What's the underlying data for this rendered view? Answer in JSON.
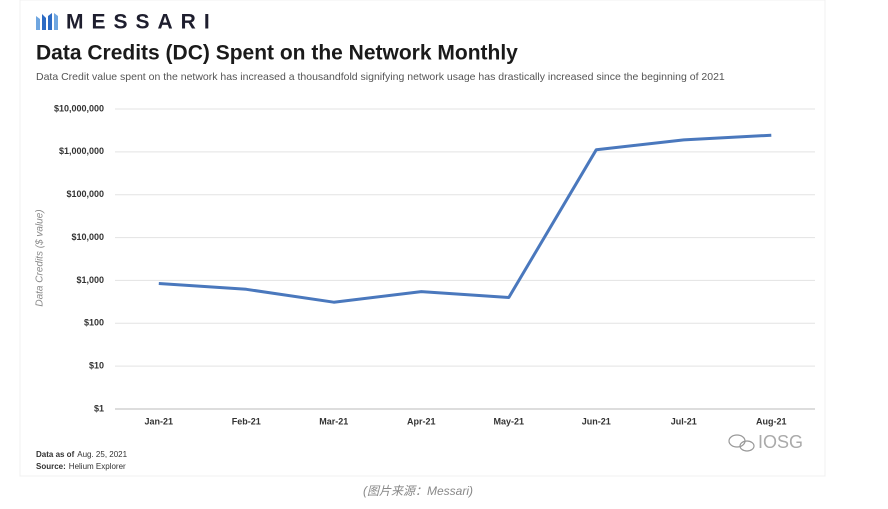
{
  "chart_data": {
    "type": "line",
    "brand": "MESSARI",
    "title": "Data Credits (DC) Spent on the Network Monthly",
    "subtitle": "Data Credit value spent  on the network has increased a thousandfold signifying network usage has drastically increased since the beginning of 2021",
    "y_label": "Data Credits ($ value)",
    "categories": [
      "Jan-21",
      "Feb-21",
      "Mar-21",
      "Apr-21",
      "May-21",
      "Jun-21",
      "Jul-21",
      "Aug-21"
    ],
    "series": [
      {
        "name": "Data Credits",
        "color": "#4a78bd",
        "values": [
          850,
          620,
          310,
          550,
          400,
          1120000,
          1900000,
          2450000
        ]
      }
    ],
    "ylim": [
      1,
      10000000
    ],
    "yticks": [
      {
        "value": 1,
        "label": "$1"
      },
      {
        "value": 10,
        "label": "$10"
      },
      {
        "value": 100,
        "label": "$100"
      },
      {
        "value": 1000,
        "label": "$1,000"
      },
      {
        "value": 10000,
        "label": "$10,000"
      },
      {
        "value": 100000,
        "label": "$100,000"
      },
      {
        "value": 1000000,
        "label": "$1,000,000"
      },
      {
        "value": 10000000,
        "label": "$10,000,000"
      }
    ],
    "log_scale": true,
    "grid": true,
    "notes": [
      {
        "label": "Data as of",
        "text": "Aug. 25, 2021"
      },
      {
        "label": "Source:",
        "text": "Helium Explorer"
      }
    ],
    "watermark": "IOSG"
  },
  "caption": "(图片来源：Messari)"
}
